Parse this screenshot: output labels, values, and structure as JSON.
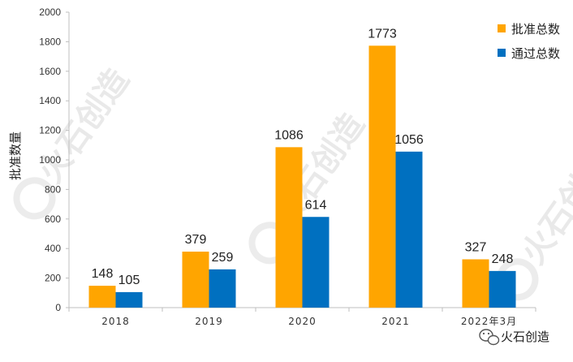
{
  "chart_data": {
    "type": "bar",
    "categories": [
      "2018",
      "2019",
      "2020",
      "2021",
      "2022年3月"
    ],
    "series": [
      {
        "name": "批准总数",
        "color": "#FFA500",
        "values": [
          148,
          379,
          1086,
          1773,
          327
        ]
      },
      {
        "name": "通过总数",
        "color": "#0070C0",
        "values": [
          105,
          259,
          614,
          1056,
          248
        ]
      }
    ],
    "ylabel": "批准数量",
    "xlabel": "",
    "ylim": [
      0,
      2000
    ],
    "yticks": [
      0,
      200,
      400,
      600,
      800,
      1000,
      1200,
      1400,
      1600,
      1800,
      2000
    ],
    "grid": false,
    "legend_position": "top-right"
  },
  "watermark": {
    "text": "火石创造"
  },
  "credit": {
    "text": "火石创造",
    "icon": "wechat-icon"
  }
}
